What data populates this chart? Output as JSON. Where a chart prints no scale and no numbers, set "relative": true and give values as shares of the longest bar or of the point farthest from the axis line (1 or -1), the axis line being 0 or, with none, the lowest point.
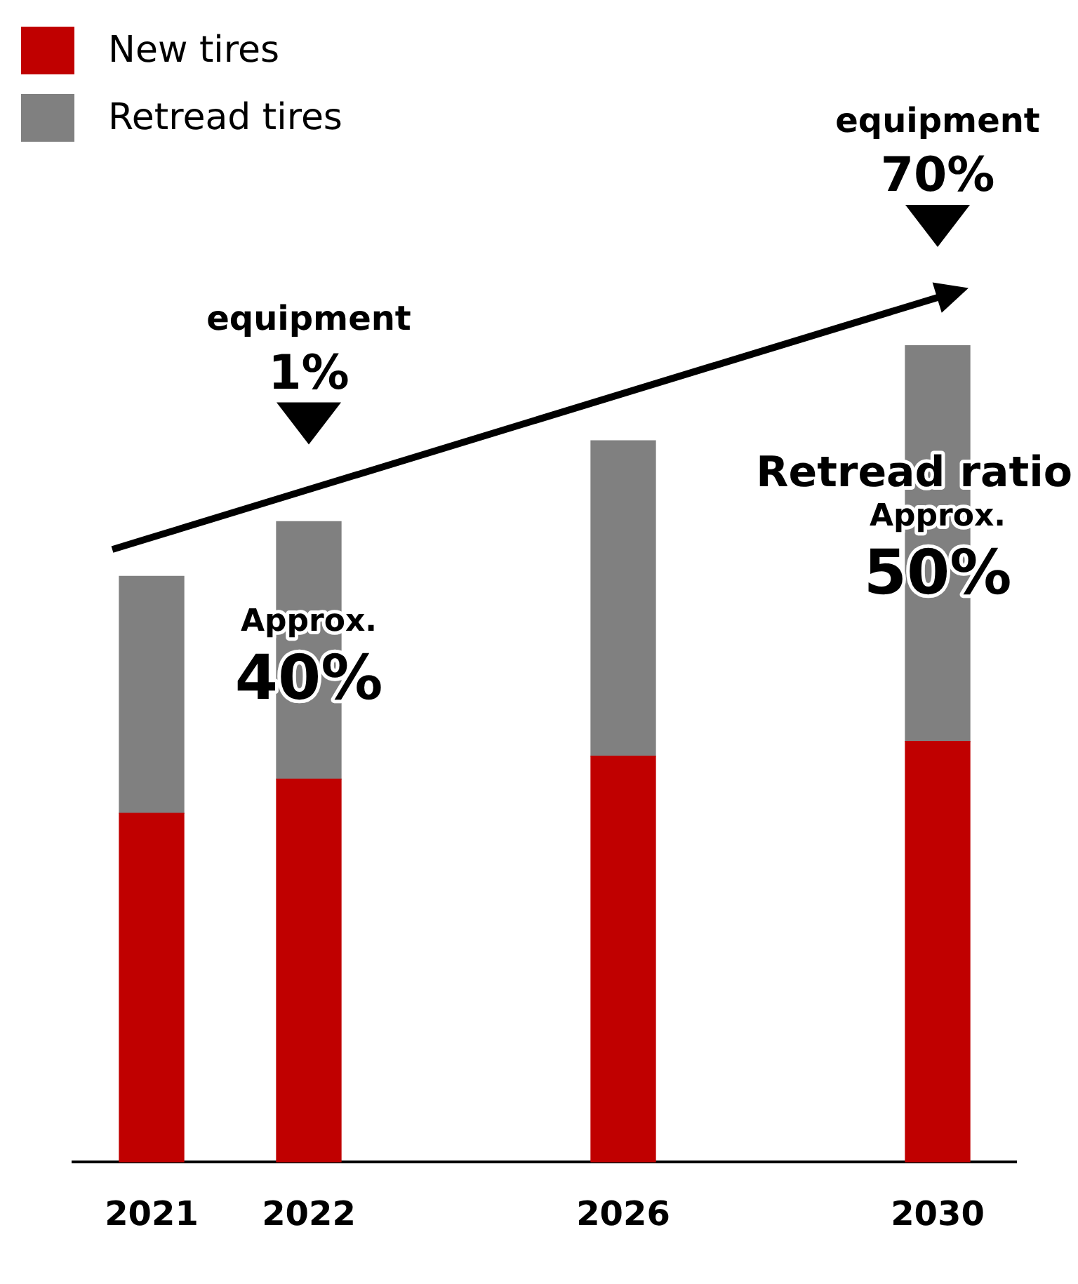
{
  "chart_data": {
    "type": "bar",
    "stacked": true,
    "relative": true,
    "legend": "top left",
    "categories": [
      "2021",
      "2022",
      null,
      "2026",
      null,
      "2030"
    ],
    "series": [
      {
        "name": "New tires",
        "color": "#c00000",
        "values": [
          0.427,
          0.469,
          null,
          0.497,
          null,
          0.515
        ]
      },
      {
        "name": "Retread tires",
        "color": "#808080",
        "values": [
          0.29,
          0.315,
          null,
          0.386,
          null,
          0.485
        ]
      }
    ],
    "annotations": [
      "equipment\n1%",
      "equipment\n70%",
      "Approx.\n40%",
      "Retread ratio\nApprox.\n50%"
    ]
  }
}
